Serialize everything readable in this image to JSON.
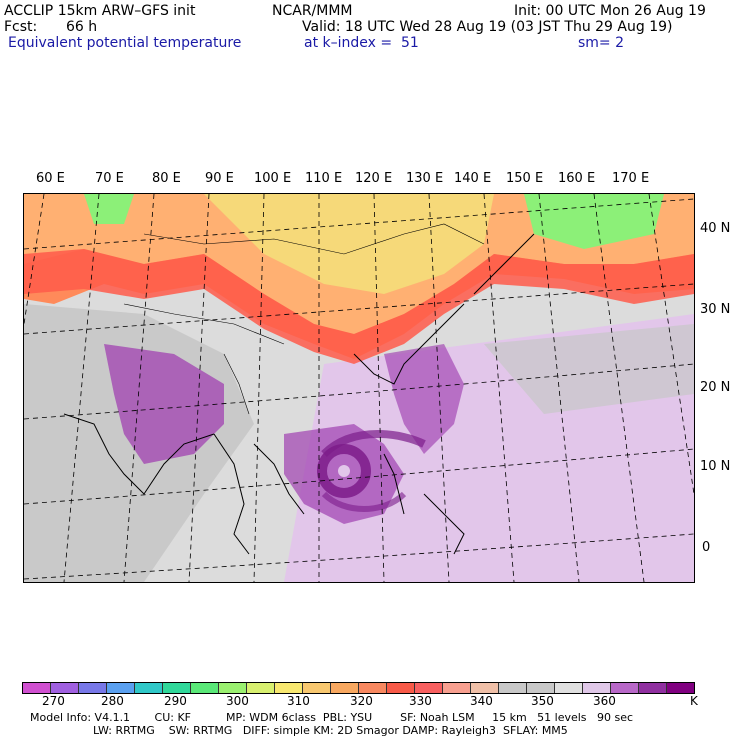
{
  "header": {
    "model": "ACCLIP 15km ARW–GFS init",
    "fcst_label": "Fcst:",
    "fcst_value": "66 h",
    "org": "NCAR/MMM",
    "init": "Init: 00 UTC Mon 26 Aug 19",
    "valid": "Valid: 18 UTC Wed 28 Aug 19 (03 JST Thu 29 Aug 19)",
    "field": "Equivalent potential temperature",
    "level": "at k–index =  51",
    "smoothing": "sm= 2"
  },
  "map": {
    "lon_labels": [
      "60 E",
      "70 E",
      "80 E",
      "90 E",
      "100 E",
      "110 E",
      "120 E",
      "130 E",
      "140 E",
      "150 E",
      "160 E",
      "170 E"
    ],
    "lat_labels": [
      "40 N",
      "30 N",
      "20 N",
      "10 N",
      "0"
    ],
    "colors": {
      "hot_band": "#ff5a4a",
      "warm": "#ffb072",
      "very_warm": "#ff8a5a",
      "yellow": "#f5e07a",
      "green": "#8cf078",
      "grey": "#c4c4c4",
      "light_grey": "#e4e4e4",
      "lilac": "#e2c6ea",
      "purple": "#a040b0",
      "dark_purple": "#7c1c8a"
    }
  },
  "colorbar": {
    "colors": [
      "#d050d0",
      "#a060e0",
      "#7878e8",
      "#5aa0f0",
      "#30c8c8",
      "#30d89a",
      "#5ae878",
      "#9af070",
      "#d8f070",
      "#f8e870",
      "#f8c870",
      "#f8a860",
      "#f88860",
      "#f85a48",
      "#f86060",
      "#f8a090",
      "#f0c0a8",
      "#c8c8c8",
      "#c8c8c8",
      "#e0e0e0",
      "#e0c8e8",
      "#b868c8",
      "#9030a0",
      "#800080"
    ],
    "ticks": [
      "270",
      "280",
      "290",
      "300",
      "310",
      "320",
      "330",
      "340",
      "350",
      "360"
    ],
    "unit": "K"
  },
  "footer": {
    "line1": "Model Info: V4.1.1       CU: KF          MP: WDM 6class  PBL: YSU        SF: Noah LSM     15 km   51 levels   90 sec",
    "line2": "                  LW: RRTMG    SW: RRTMG   DIFF: simple KM: 2D Smagor DAMP: Rayleigh3  SFLAY: MM5"
  }
}
